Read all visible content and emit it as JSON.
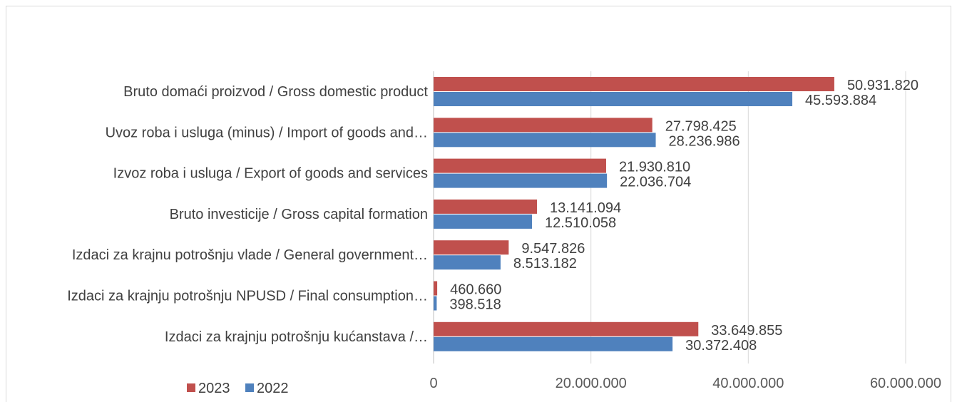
{
  "chart_data": {
    "type": "bar",
    "orientation": "horizontal",
    "categories": [
      "Bruto domaći proizvod / Gross domestic product",
      "Uvoz roba i usluga (minus) / Import of goods and…",
      "Izvoz roba i usluga / Export of goods and services",
      "Bruto investicije / Gross capital formation",
      "Izdaci za krajnu potrošnju vlade / General government…",
      "Izdaci za krajnju potrošnju NPUSD / Final consumption…",
      "Izdaci za krajnju potrošnju kućanstava /…"
    ],
    "series": [
      {
        "name": "2023",
        "color": "#C0504D",
        "values": [
          50931820,
          27798425,
          21930810,
          13141094,
          9547826,
          460660,
          33649855
        ],
        "value_labels": [
          "50.931.820",
          "27.798.425",
          "21.930.810",
          "13.141.094",
          "9.547.826",
          "460.660",
          "33.649.855"
        ]
      },
      {
        "name": "2022",
        "color": "#4F81BD",
        "values": [
          45593884,
          28236986,
          22036704,
          12510058,
          8513182,
          398518,
          30372408
        ],
        "value_labels": [
          "45.593.884",
          "28.236.986",
          "22.036.704",
          "12.510.058",
          "8.513.182",
          "398.518",
          "30.372.408"
        ]
      }
    ],
    "xlim": [
      0,
      60000000
    ],
    "x_ticks": [
      0,
      20000000,
      40000000,
      60000000
    ],
    "x_tick_labels": [
      "0",
      "20.000.000",
      "40.000.000",
      "60.000.000"
    ],
    "grid": true,
    "legend_position": "bottom-left",
    "title": "",
    "xlabel": "",
    "ylabel": ""
  }
}
